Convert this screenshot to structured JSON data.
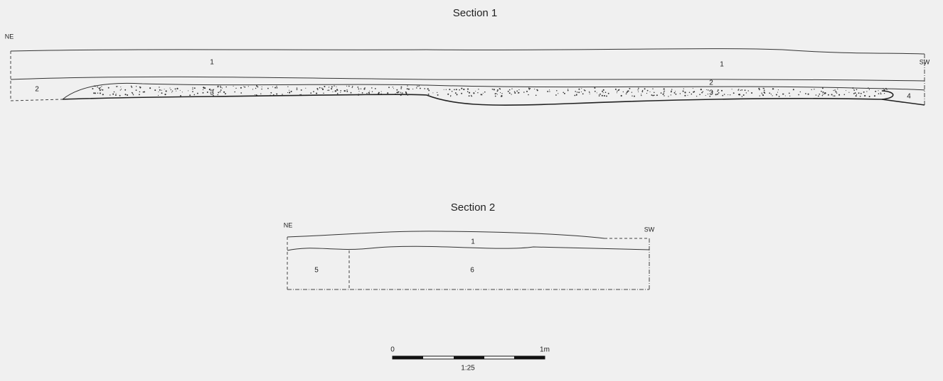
{
  "sections": [
    {
      "title": "Section 1",
      "left_label": "NE",
      "right_label": "SW",
      "layers": [
        "1",
        "1",
        "2",
        "2",
        "3",
        "3",
        "4"
      ]
    },
    {
      "title": "Section 2",
      "left_label": "NE",
      "right_label": "SW",
      "layers": [
        "1",
        "5",
        "6"
      ]
    }
  ],
  "scale_bar": {
    "start_label": "0",
    "end_label": "1m",
    "ratio": "1:25"
  }
}
